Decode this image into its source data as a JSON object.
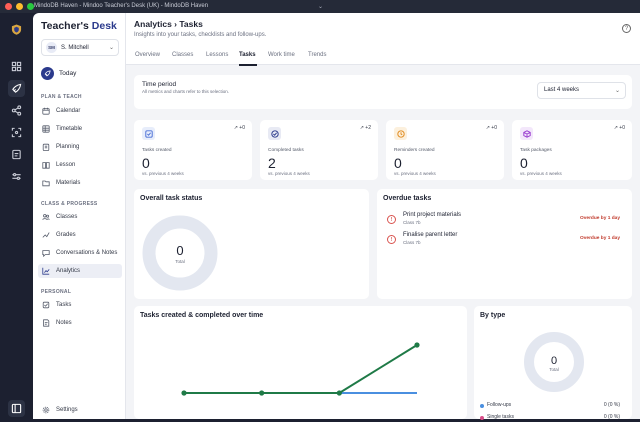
{
  "window": {
    "title": "MindoDB Haven - Mindoo Teacher's Desk (UK) - MindoDB Haven"
  },
  "sidebar": {
    "brand_main": "Teacher's",
    "brand_accent": "Desk",
    "user_initials": "SM",
    "user_name": "S. Mitchell",
    "today": "Today",
    "sections": {
      "plan": "PLAN & TEACH",
      "class": "CLASS & PROGRESS",
      "personal": "PERSONAL"
    },
    "items": {
      "calendar": "Calendar",
      "timetable": "Timetable",
      "planning": "Planning",
      "lesson": "Lesson",
      "materials": "Materials",
      "classes": "Classes",
      "grades": "Grades",
      "conversations": "Conversations & Notes",
      "analytics": "Analytics",
      "tasks": "Tasks",
      "notes": "Notes",
      "settings": "Settings"
    }
  },
  "header": {
    "title": "Analytics › Tasks",
    "subtitle": "Insights into your tasks, checklists and follow-ups.",
    "help": "?"
  },
  "tabs": [
    "Overview",
    "Classes",
    "Lessons",
    "Tasks",
    "Work time",
    "Trends"
  ],
  "time_period": {
    "title": "Time period",
    "subtitle": "All metrics and charts refer to this selection.",
    "value": "Last 4 weeks"
  },
  "kpis": [
    {
      "label": "Tasks created",
      "value": "0",
      "trend": "+0",
      "compare": "vs. previous 4 weeks",
      "color": "#4a6fd6"
    },
    {
      "label": "Completed tasks",
      "value": "2",
      "trend": "+2",
      "compare": "vs. previous 4 weeks",
      "color": "#2b3a8c"
    },
    {
      "label": "Reminders created",
      "value": "0",
      "trend": "+0",
      "compare": "vs. previous 4 weeks",
      "color": "#e08a1e"
    },
    {
      "label": "Task packages",
      "value": "0",
      "trend": "+0",
      "compare": "vs. previous 4 weeks",
      "color": "#9b3fd1"
    }
  ],
  "overall": {
    "title": "Overall task status",
    "total_value": "0",
    "total_label": "Total"
  },
  "overdue": {
    "title": "Overdue tasks",
    "items": [
      {
        "title": "Print project materials",
        "class": "Class 7b",
        "status": "Overdue by 1 day"
      },
      {
        "title": "Finalise parent letter",
        "class": "Class 7b",
        "status": "Overdue by 1 day"
      }
    ]
  },
  "timeline": {
    "title": "Tasks created & completed over time"
  },
  "chart_data": {
    "type": "line",
    "title": "Tasks created & completed over time",
    "xlabel": "",
    "ylabel": "",
    "x": [
      1,
      2,
      3,
      4
    ],
    "series": [
      {
        "values": [
          0,
          0,
          0,
          0
        ],
        "color": "#4a8fe0"
      },
      {
        "values": [
          0,
          0,
          0,
          2
        ],
        "color": "#1f7a47"
      }
    ],
    "ylim": [
      0,
      2
    ],
    "grid": false,
    "legend": "none"
  },
  "bytype": {
    "title": "By type",
    "total_value": "0",
    "total_label": "Total",
    "items": [
      {
        "name": "Follow-ups",
        "value": "0 (0 %)",
        "color": "#4a8fe0"
      },
      {
        "name": "Single tasks",
        "value": "0 (0 %)",
        "color": "#d94f8a"
      },
      {
        "name": "Task packages",
        "value": "0 (0 %)",
        "color": "#2aa37a"
      }
    ]
  }
}
